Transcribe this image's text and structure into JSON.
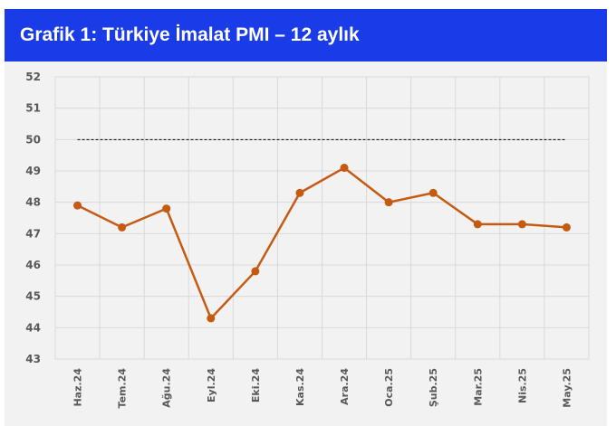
{
  "header": {
    "title": "Grafik 1: Türkiye İmalat PMI – 12 aylık"
  },
  "chart_data": {
    "type": "line",
    "title": "Grafik 1: Türkiye İmalat PMI – 12 aylık",
    "categories": [
      "Haz.24",
      "Tem.24",
      "Ağu.24",
      "Eyl.24",
      "Eki.24",
      "Kas.24",
      "Ara.24",
      "Oca.25",
      "Şub.25",
      "Mar.25",
      "Nis.25",
      "May.25"
    ],
    "series": [
      {
        "values": [
          47.9,
          47.2,
          47.8,
          44.3,
          45.8,
          48.3,
          49.1,
          48.0,
          48.3,
          47.3,
          47.3,
          47.2
        ]
      }
    ],
    "reference_line": 50,
    "ylim": [
      43,
      52
    ],
    "yticks": [
      43,
      44,
      45,
      46,
      47,
      48,
      49,
      50,
      51,
      52
    ],
    "grid": true,
    "colors": {
      "line": "#c55a11",
      "grid": "#d9d9d9",
      "reference": "#000000",
      "header_bg": "#1a3be8"
    }
  }
}
